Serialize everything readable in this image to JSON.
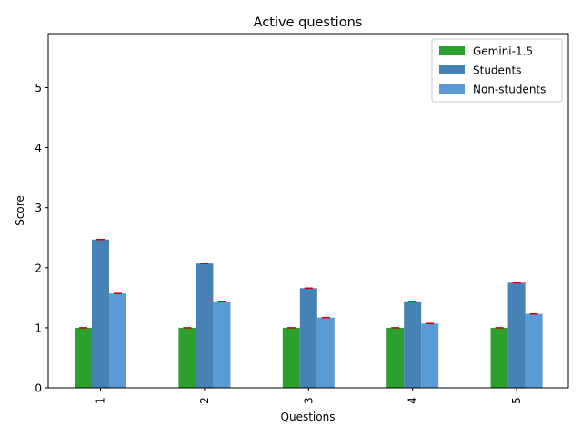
{
  "chart_data": {
    "type": "bar",
    "title": "Active questions",
    "xlabel": "Questions",
    "ylabel": "Score",
    "categories": [
      "1",
      "2",
      "3",
      "4",
      "5"
    ],
    "ylim": [
      0,
      5.9
    ],
    "yticks": [
      "0",
      "1",
      "2",
      "3",
      "4",
      "5"
    ],
    "legend_position": "top-right",
    "series": [
      {
        "name": "Gemini-1.5",
        "values": [
          1.0,
          1.0,
          1.0,
          1.0,
          1.0
        ],
        "color": "#2ca02c"
      },
      {
        "name": "Students",
        "values": [
          2.47,
          2.07,
          1.66,
          1.44,
          1.75
        ],
        "color": "#4682b4"
      },
      {
        "name": "Non-students",
        "values": [
          1.57,
          1.44,
          1.17,
          1.07,
          1.23
        ],
        "color": "#5b9bd5"
      }
    ],
    "error_bar_color": "#cc0000"
  }
}
